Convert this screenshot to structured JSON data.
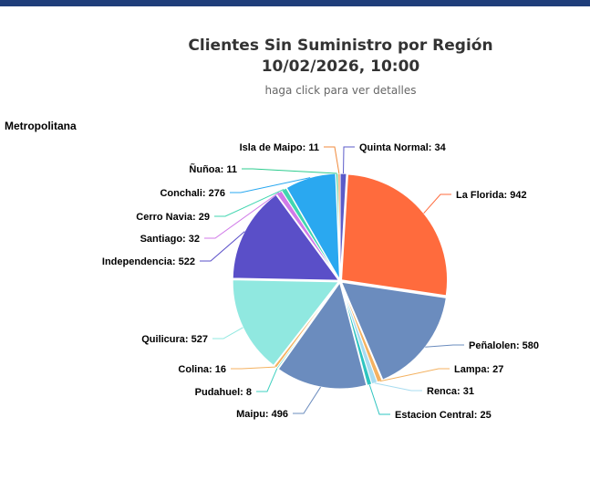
{
  "chart_data": {
    "type": "pie",
    "title_line1": "Clientes Sin Suministro por Región",
    "title_line2": "10/02/2026, 10:00",
    "subtitle": "haga click para ver detalles",
    "region_label": "Metropolitana",
    "slices": [
      {
        "name": "Quinta Normal",
        "value": 34,
        "color": "#5b5bc9",
        "label": "Quinta Normal: 34",
        "side": "right"
      },
      {
        "name": "La Florida",
        "value": 942,
        "color": "#ff6b3d",
        "label": "La Florida: 942",
        "side": "right"
      },
      {
        "name": "Peñalolen",
        "value": 580,
        "color": "#6b8cbe",
        "label": "Peñalolen: 580",
        "side": "right"
      },
      {
        "name": "Lampa",
        "value": 27,
        "color": "#f4b261",
        "label": "Lampa: 27",
        "side": "right"
      },
      {
        "name": "Renca",
        "value": 31,
        "color": "#a8dcf0",
        "label": "Renca: 31",
        "side": "right"
      },
      {
        "name": "Estacion Central",
        "value": 25,
        "color": "#2ec4c0",
        "label": "Estacion Central: 25",
        "side": "right"
      },
      {
        "name": "Maipu",
        "value": 496,
        "color": "#6b8cbe",
        "label": "Maipu: 496",
        "side": "left"
      },
      {
        "name": "Pudahuel",
        "value": 8,
        "color": "#3fd0c0",
        "label": "Pudahuel: 8",
        "side": "left"
      },
      {
        "name": "Colina",
        "value": 16,
        "color": "#f4b261",
        "label": "Colina: 16",
        "side": "left"
      },
      {
        "name": "Quilicura",
        "value": 527,
        "color": "#90e8e0",
        "label": "Quilicura: 527",
        "side": "left"
      },
      {
        "name": "Independencia",
        "value": 522,
        "color": "#5a4fc8",
        "label": "Independencia: 522",
        "side": "left"
      },
      {
        "name": "Santiago",
        "value": 32,
        "color": "#d07ae8",
        "label": "Santiago: 32",
        "side": "left"
      },
      {
        "name": "Cerro Navia",
        "value": 29,
        "color": "#42d6b0",
        "label": "Cerro Navia: 29",
        "side": "left"
      },
      {
        "name": "Conchali",
        "value": 276,
        "color": "#2aa8f0",
        "label": "Conchali: 276",
        "side": "left"
      },
      {
        "name": "Ñuñoa",
        "value": 11,
        "color": "#2ecc8f",
        "label": "Ñuñoa: 11",
        "side": "left"
      },
      {
        "name": "Isla de Maipo",
        "value": 11,
        "color": "#f08a3c",
        "label": "Isla de Maipo: 11",
        "side": "left"
      }
    ]
  }
}
